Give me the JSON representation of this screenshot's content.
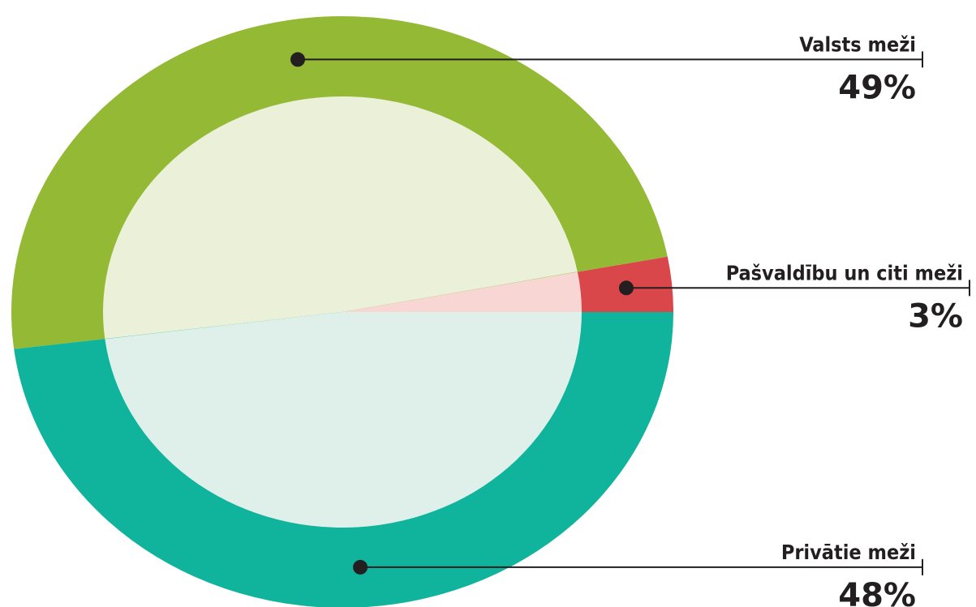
{
  "chart_data": {
    "type": "donut",
    "categories": [
      "Pašvaldību un citi meži",
      "Valsts meži",
      "Privātie meži"
    ],
    "values": [
      3,
      49,
      48
    ],
    "value_labels": [
      "3%",
      "49%",
      "48%"
    ],
    "colors": [
      "#d9474a",
      "#93b935",
      "#10b39b"
    ],
    "inner_colors": [
      "#f7d6d3",
      "#ebf0d9",
      "#dff0eb"
    ]
  }
}
